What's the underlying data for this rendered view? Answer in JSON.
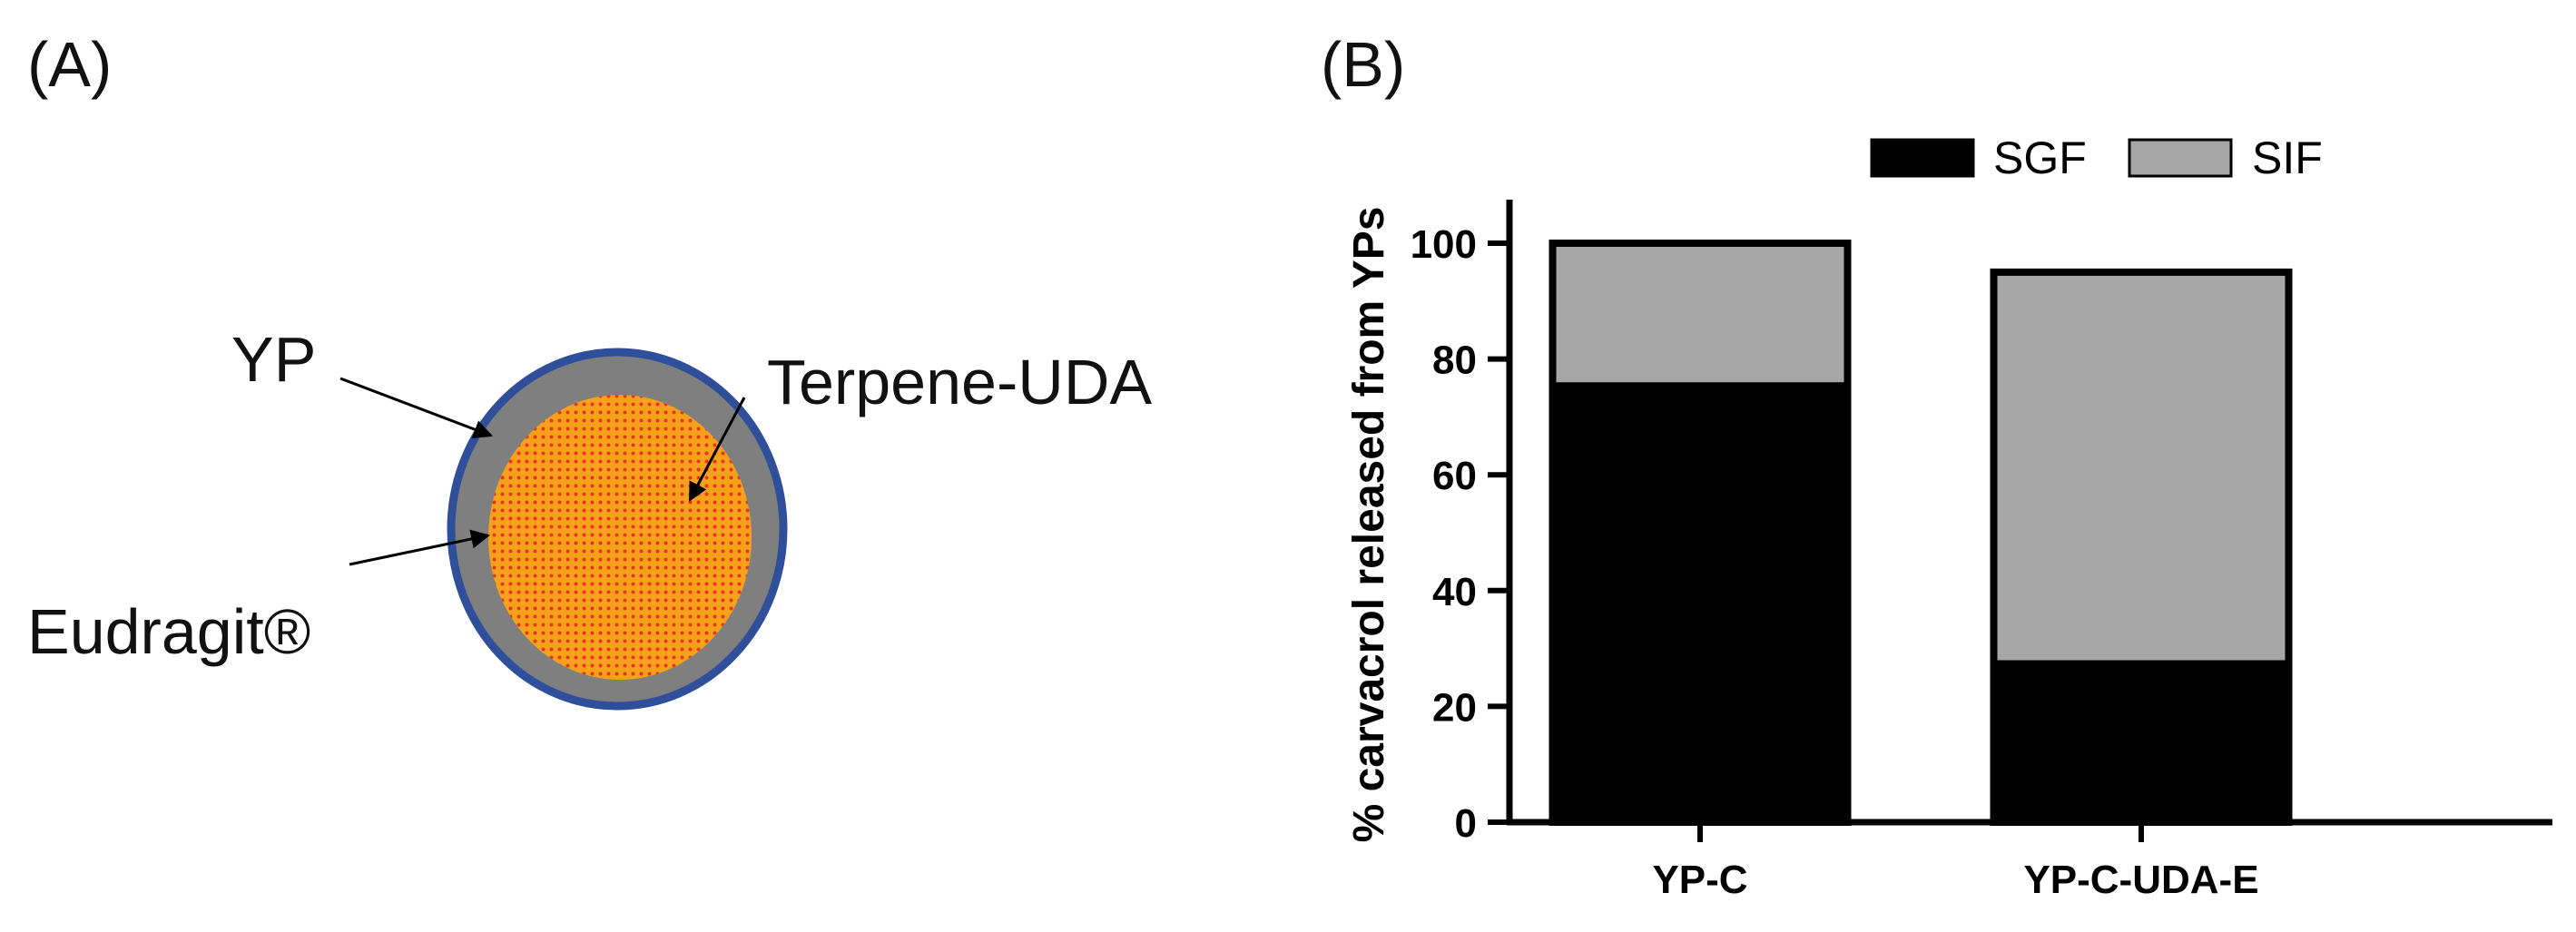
{
  "panels": {
    "a_label": "(A)",
    "b_label": "(B)"
  },
  "diagram": {
    "labels": {
      "yp": "YP",
      "terpene": "Terpene-UDA",
      "eudragit": "Eudragit®"
    },
    "colors": {
      "outer_ring": "#2f4f9a",
      "shell": "#7f7f7f",
      "core": "#f5a21a",
      "core_dots": "#e8351e"
    }
  },
  "chart_data": {
    "type": "bar",
    "stacked": true,
    "categories": [
      "YP-C",
      "YP-C-UDA-E"
    ],
    "series": [
      {
        "name": "SGF",
        "values": [
          76,
          28
        ],
        "color": "#000000"
      },
      {
        "name": "SIF",
        "values": [
          24,
          67
        ],
        "color": "#a6a6a6"
      }
    ],
    "ylabel": "% carvacrol released from  YPs",
    "ylim": [
      0,
      100
    ],
    "yticks": [
      0,
      20,
      40,
      60,
      80,
      100
    ],
    "legend_position": "top",
    "grid": false
  }
}
